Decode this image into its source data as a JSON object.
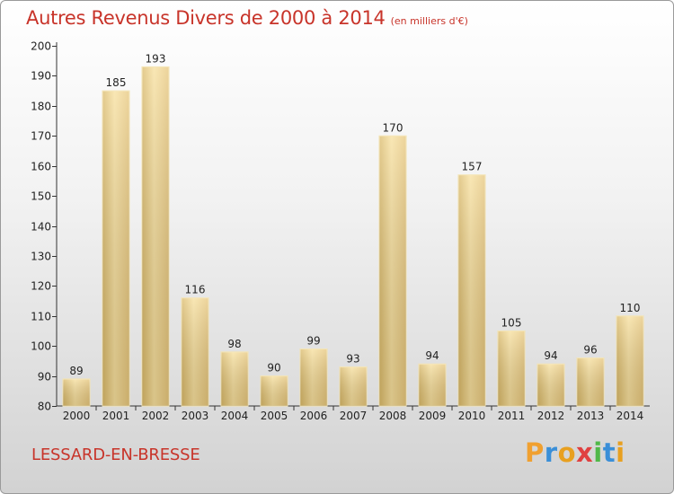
{
  "header": {
    "title": "Autres Revenus Divers de 2000 à 2014",
    "subtitle": "(en milliers d'€)"
  },
  "footer": {
    "place": "LESSARD-EN-BRESSE",
    "logo": "Proxiti"
  },
  "colors": {
    "title": "#c8342a",
    "bar_light": "#f6dc96",
    "bar_dark": "#d8b560",
    "axis": "#333333"
  },
  "chart_data": {
    "type": "bar",
    "title": "Autres Revenus Divers de 2000 à 2014",
    "subtitle": "(en milliers d'€)",
    "categories": [
      "2000",
      "2001",
      "2002",
      "2003",
      "2004",
      "2005",
      "2006",
      "2007",
      "2008",
      "2009",
      "2010",
      "2011",
      "2012",
      "2013",
      "2014"
    ],
    "values": [
      89,
      185,
      193,
      116,
      98,
      90,
      99,
      93,
      170,
      94,
      157,
      105,
      94,
      96,
      110
    ],
    "ylim": [
      80,
      200
    ],
    "yticks": [
      80,
      90,
      100,
      110,
      120,
      130,
      140,
      150,
      160,
      170,
      180,
      190,
      200
    ],
    "grid": false,
    "legend": "none",
    "data_labels": true
  }
}
